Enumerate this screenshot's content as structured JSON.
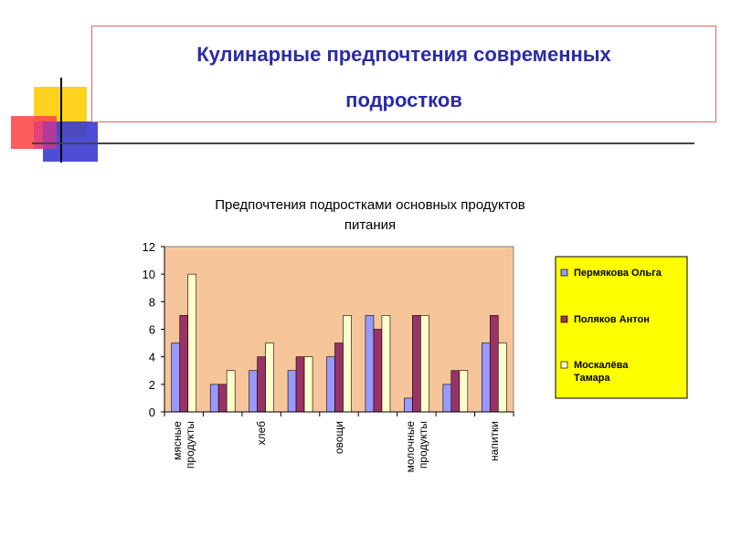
{
  "slide": {
    "title_line1": "Кулинарные предпочтения современных",
    "title_line2": "подростков"
  },
  "colors": {
    "title": "#2b2ba6",
    "plot_background": "#f7c59a",
    "legend_background": "#ffff00",
    "series": [
      "#9999ff",
      "#993366",
      "#ffffcc"
    ]
  },
  "chart_data": {
    "type": "bar",
    "title_line1": "Предпочтения подростками основных продуктов",
    "title_line2": "питания",
    "xlabel": "",
    "ylabel": "",
    "ylim": [
      0,
      12
    ],
    "yticks": [
      "0",
      "2",
      "4",
      "6",
      "8",
      "10",
      "12"
    ],
    "grid": false,
    "legend_position": "right",
    "categories": [
      "мясные продукты",
      "",
      "хлеб",
      "",
      "овощи",
      "",
      "молочные продукты",
      "",
      "напитки"
    ],
    "series": [
      {
        "name": "Пермякова Ольга",
        "values": [
          5,
          2,
          3,
          3,
          4,
          7,
          1,
          2,
          5
        ]
      },
      {
        "name": "Поляков Антон",
        "values": [
          7,
          2,
          4,
          4,
          5,
          6,
          7,
          3,
          7
        ]
      },
      {
        "name": "Москалёва Тамара",
        "values": [
          10,
          3,
          5,
          4,
          7,
          7,
          7,
          3,
          5
        ]
      }
    ]
  }
}
